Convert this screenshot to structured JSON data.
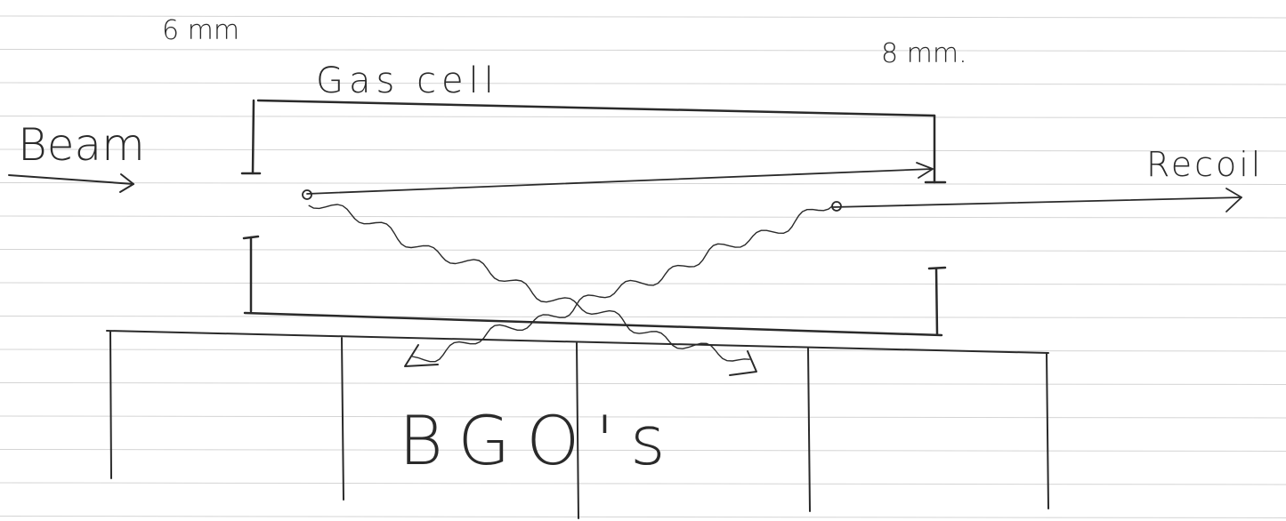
{
  "labels": {
    "left_width": "6 mm",
    "right_width": "8 mm.",
    "gas_cell": "Gas cell",
    "beam": "Beam",
    "recoil": "Recoil",
    "detectors": "BGO's"
  }
}
